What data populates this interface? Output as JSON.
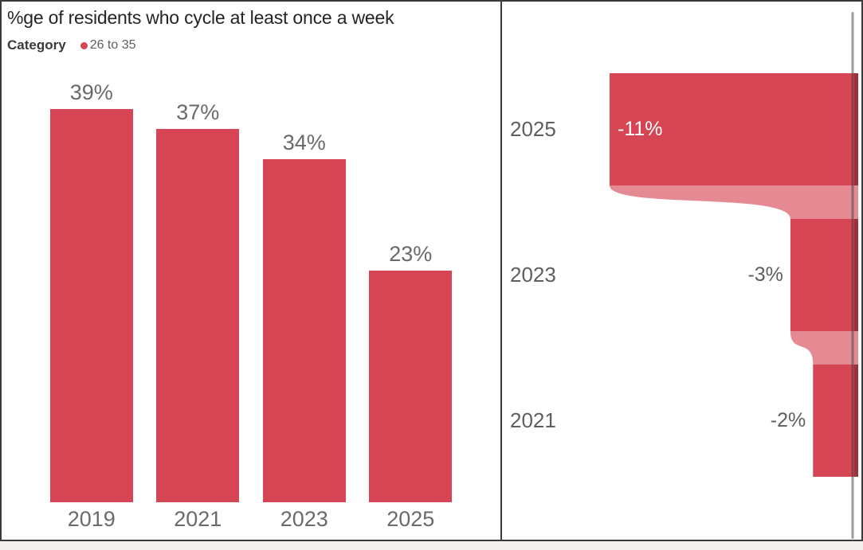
{
  "colors": {
    "bar_red": "#D64554",
    "connector_pink": "rgba(214,69,84,0.63)",
    "label_gray": "#6a6a6a",
    "right_label_gray": "#605e5c",
    "inside_label_white": "#ffffff",
    "title_dark": "#252423",
    "border_dark": "#3a3a39",
    "panel_bg": "#ffffff",
    "page_bg": "#f1f0ef",
    "scrollbar_gray": "#8a8a8a"
  },
  "chart_data": [
    {
      "type": "bar",
      "title": "%ge of residents who cycle at least once a week",
      "legend": {
        "field": "Category",
        "items": [
          "26 to 35"
        ],
        "position": "top-left"
      },
      "categories": [
        "2019",
        "2021",
        "2023",
        "2025"
      ],
      "values": [
        39,
        37,
        34,
        23
      ],
      "data_labels": [
        "39%",
        "37%",
        "34%",
        "23%"
      ],
      "xlabel": "",
      "ylabel": "",
      "ylim": [
        0,
        40
      ],
      "grid": false,
      "axis_lines": false
    },
    {
      "type": "bar",
      "subtype": "funnel-flow",
      "orientation": "horizontal",
      "baseline": "right",
      "categories": [
        "2025",
        "2023",
        "2021"
      ],
      "values": [
        -11,
        -3,
        -2
      ],
      "data_labels": [
        "-11%",
        "-3%",
        "-2%"
      ],
      "xlim": [
        -11,
        0
      ],
      "grid": false,
      "connectors": true,
      "scrollbar": true
    }
  ]
}
